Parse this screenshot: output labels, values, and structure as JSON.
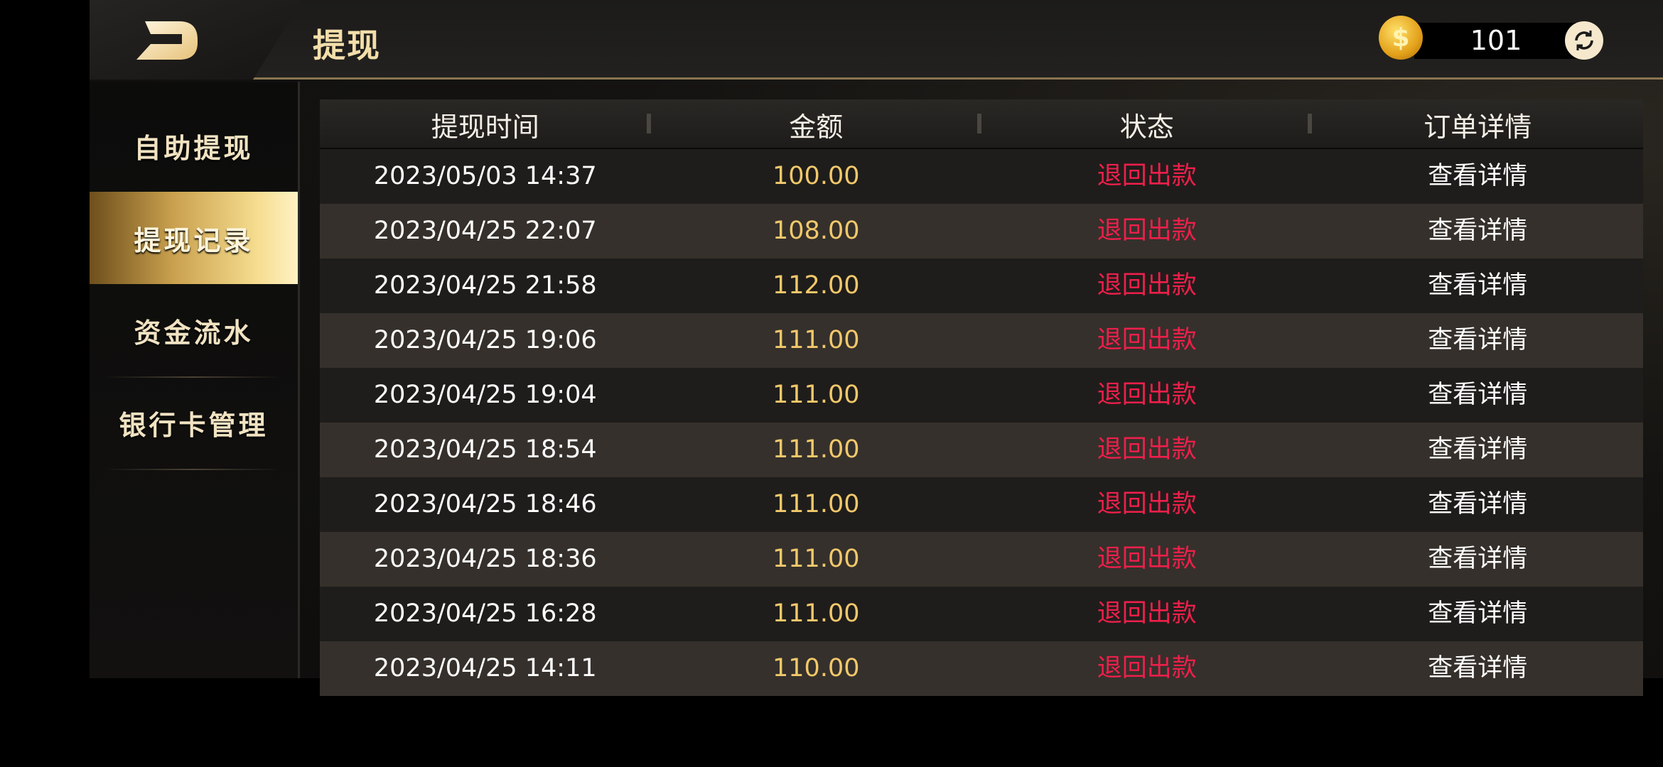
{
  "header": {
    "title": "提现",
    "balance": "101",
    "icons": {
      "back": "back-logo-icon",
      "coin": "coin-dollar-icon",
      "refresh": "refresh-icon"
    },
    "coin_symbol": "$"
  },
  "sidebar": {
    "items": [
      {
        "label": "自助提现",
        "active": false
      },
      {
        "label": "提现记录",
        "active": true
      },
      {
        "label": "资金流水",
        "active": false
      },
      {
        "label": "银行卡管理",
        "active": false
      }
    ]
  },
  "table": {
    "columns": [
      "提现时间",
      "金额",
      "状态",
      "订单详情"
    ],
    "rows": [
      {
        "time": "2023/05/03 14:37",
        "amount": "100.00",
        "status": "退回出款",
        "detail": "查看详情"
      },
      {
        "time": "2023/04/25 22:07",
        "amount": "108.00",
        "status": "退回出款",
        "detail": "查看详情"
      },
      {
        "time": "2023/04/25 21:58",
        "amount": "112.00",
        "status": "退回出款",
        "detail": "查看详情"
      },
      {
        "time": "2023/04/25 19:06",
        "amount": "111.00",
        "status": "退回出款",
        "detail": "查看详情"
      },
      {
        "time": "2023/04/25 19:04",
        "amount": "111.00",
        "status": "退回出款",
        "detail": "查看详情"
      },
      {
        "time": "2023/04/25 18:54",
        "amount": "111.00",
        "status": "退回出款",
        "detail": "查看详情"
      },
      {
        "time": "2023/04/25 18:46",
        "amount": "111.00",
        "status": "退回出款",
        "detail": "查看详情"
      },
      {
        "time": "2023/04/25 18:36",
        "amount": "111.00",
        "status": "退回出款",
        "detail": "查看详情"
      },
      {
        "time": "2023/04/25 16:28",
        "amount": "111.00",
        "status": "退回出款",
        "detail": "查看详情"
      },
      {
        "time": "2023/04/25 14:11",
        "amount": "110.00",
        "status": "退回出款",
        "detail": "查看详情"
      }
    ]
  },
  "colors": {
    "accent_gold": "#f2c86b",
    "status_red": "#ee1f4b",
    "header_line": "#8a7550"
  }
}
